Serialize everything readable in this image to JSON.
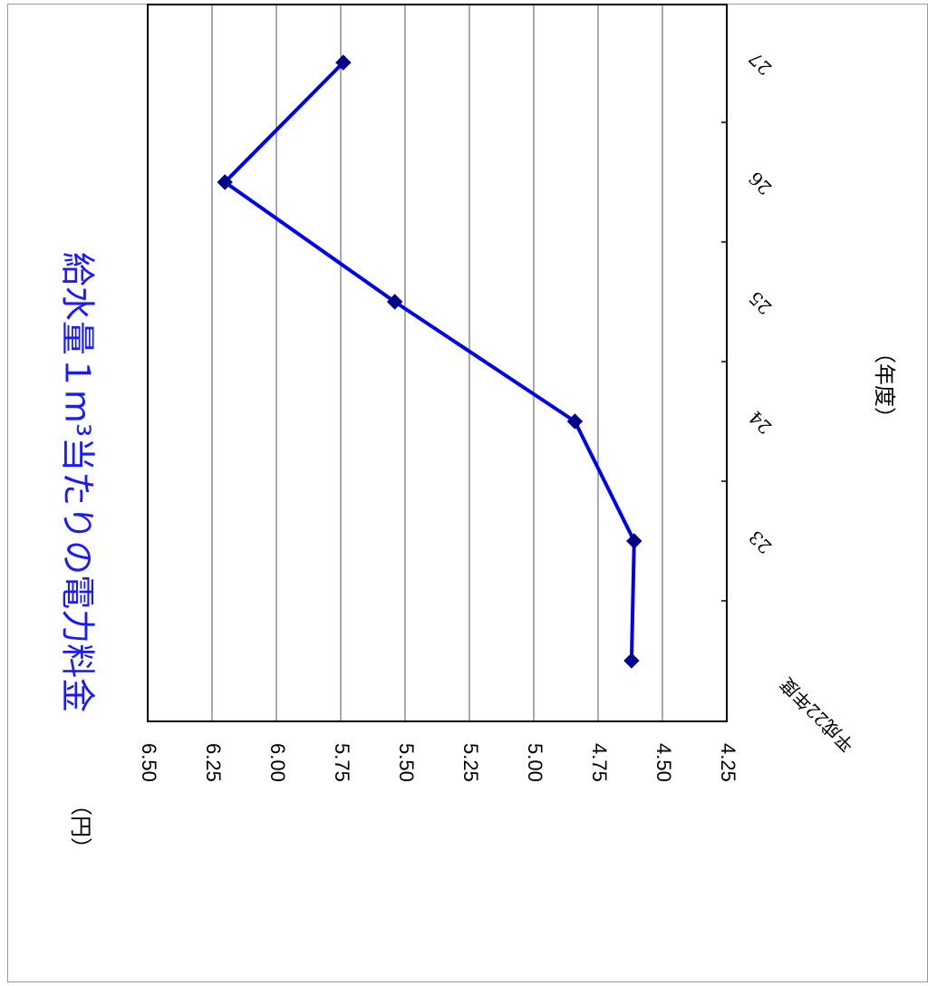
{
  "chart_data": {
    "type": "line",
    "title": "給水量１m³当たりの電力料金",
    "ylabel": "（円）",
    "xlabel": "（年度）",
    "categories": [
      "平成22年度",
      "23",
      "24",
      "25",
      "26",
      "27"
    ],
    "yticks": [
      "6.50",
      "6.25",
      "6.00",
      "5.75",
      "5.50",
      "5.25",
      "5.00",
      "4.75",
      "4.50",
      "4.25"
    ],
    "ylim": [
      4.25,
      6.5
    ],
    "values": [
      4.62,
      4.61,
      4.84,
      5.54,
      6.2,
      5.74
    ],
    "grid": true,
    "series_color": "#0000ee",
    "marker_color": "#00008b",
    "orientation": "rotated-90-clockwise"
  }
}
